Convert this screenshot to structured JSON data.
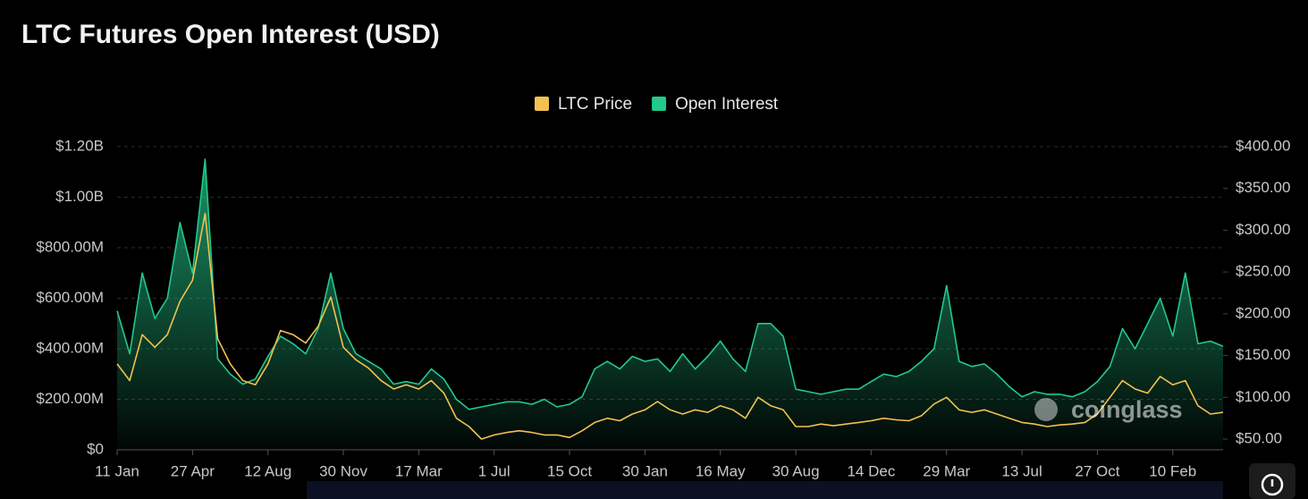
{
  "chart_data": {
    "type": "line",
    "title": "LTC Futures Open Interest (USD)",
    "watermark": "coinglass",
    "categories": [
      "11 Jan",
      null,
      null,
      null,
      null,
      null,
      "27 Apr",
      null,
      null,
      null,
      null,
      null,
      "12 Aug",
      null,
      null,
      null,
      null,
      null,
      "30 Nov",
      null,
      null,
      null,
      null,
      null,
      "17 Mar",
      null,
      null,
      null,
      null,
      null,
      "1 Jul",
      null,
      null,
      null,
      null,
      null,
      "15 Oct",
      null,
      null,
      null,
      null,
      null,
      "30 Jan",
      null,
      null,
      null,
      null,
      null,
      "16 May",
      null,
      null,
      null,
      null,
      null,
      "30 Aug",
      null,
      null,
      null,
      null,
      null,
      "14 Dec",
      null,
      null,
      null,
      null,
      null,
      "29 Mar",
      null,
      null,
      null,
      null,
      null,
      "13 Jul",
      null,
      null,
      null,
      null,
      null,
      "27 Oct",
      null,
      null,
      null,
      null,
      null,
      "10 Feb",
      null,
      null,
      null,
      null
    ],
    "series": [
      {
        "name": "LTC Price",
        "color": "#f2c150",
        "axis": "y2",
        "values": [
          140,
          120,
          175,
          160,
          175,
          215,
          240,
          320,
          170,
          140,
          120,
          115,
          140,
          180,
          175,
          165,
          185,
          220,
          160,
          145,
          135,
          120,
          110,
          115,
          110,
          120,
          105,
          75,
          65,
          50,
          55,
          58,
          60,
          58,
          55,
          55,
          52,
          60,
          70,
          75,
          72,
          80,
          85,
          95,
          85,
          80,
          85,
          82,
          90,
          85,
          75,
          100,
          90,
          85,
          65,
          65,
          68,
          66,
          68,
          70,
          72,
          75,
          73,
          72,
          78,
          92,
          100,
          85,
          82,
          85,
          80,
          75,
          70,
          68,
          65,
          67,
          68,
          70,
          80,
          100,
          120,
          110,
          105,
          125,
          115,
          120,
          90,
          80,
          82
        ]
      },
      {
        "name": "Open Interest",
        "color": "#22c98a",
        "values": [
          550000000,
          380000000,
          700000000,
          520000000,
          600000000,
          900000000,
          700000000,
          1150000000,
          360000000,
          300000000,
          260000000,
          280000000,
          370000000,
          450000000,
          420000000,
          380000000,
          480000000,
          700000000,
          480000000,
          380000000,
          350000000,
          320000000,
          260000000,
          270000000,
          260000000,
          320000000,
          280000000,
          200000000,
          160000000,
          170000000,
          180000000,
          190000000,
          190000000,
          180000000,
          200000000,
          170000000,
          180000000,
          210000000,
          320000000,
          350000000,
          320000000,
          370000000,
          350000000,
          360000000,
          310000000,
          380000000,
          320000000,
          370000000,
          430000000,
          360000000,
          310000000,
          500000000,
          500000000,
          450000000,
          240000000,
          230000000,
          220000000,
          230000000,
          240000000,
          240000000,
          270000000,
          300000000,
          290000000,
          310000000,
          350000000,
          400000000,
          650000000,
          350000000,
          330000000,
          340000000,
          300000000,
          250000000,
          210000000,
          230000000,
          220000000,
          220000000,
          210000000,
          230000000,
          270000000,
          330000000,
          480000000,
          400000000,
          500000000,
          600000000,
          450000000,
          700000000,
          420000000,
          430000000,
          410000000
        ]
      }
    ],
    "ylim": [
      0,
      1200000000
    ],
    "yticks": [
      {
        "value": 0,
        "label": "$0"
      },
      {
        "value": 200000000,
        "label": "$200.00M"
      },
      {
        "value": 400000000,
        "label": "$400.00M"
      },
      {
        "value": 600000000,
        "label": "$600.00M"
      },
      {
        "value": 800000000,
        "label": "$800.00M"
      },
      {
        "value": 1000000000,
        "label": "$1.00B"
      },
      {
        "value": 1200000000,
        "label": "$1.20B"
      }
    ],
    "y2lim": [
      37.2,
      400
    ],
    "y2ticks": [
      {
        "value": 50,
        "label": "$50.00"
      },
      {
        "value": 100,
        "label": "$100.00"
      },
      {
        "value": 150,
        "label": "$150.00"
      },
      {
        "value": 200,
        "label": "$200.00"
      },
      {
        "value": 250,
        "label": "$250.00"
      },
      {
        "value": 300,
        "label": "$300.00"
      },
      {
        "value": 350,
        "label": "$350.00"
      },
      {
        "value": 400,
        "label": "$400.00"
      }
    ],
    "grid": true,
    "legend": "top"
  }
}
